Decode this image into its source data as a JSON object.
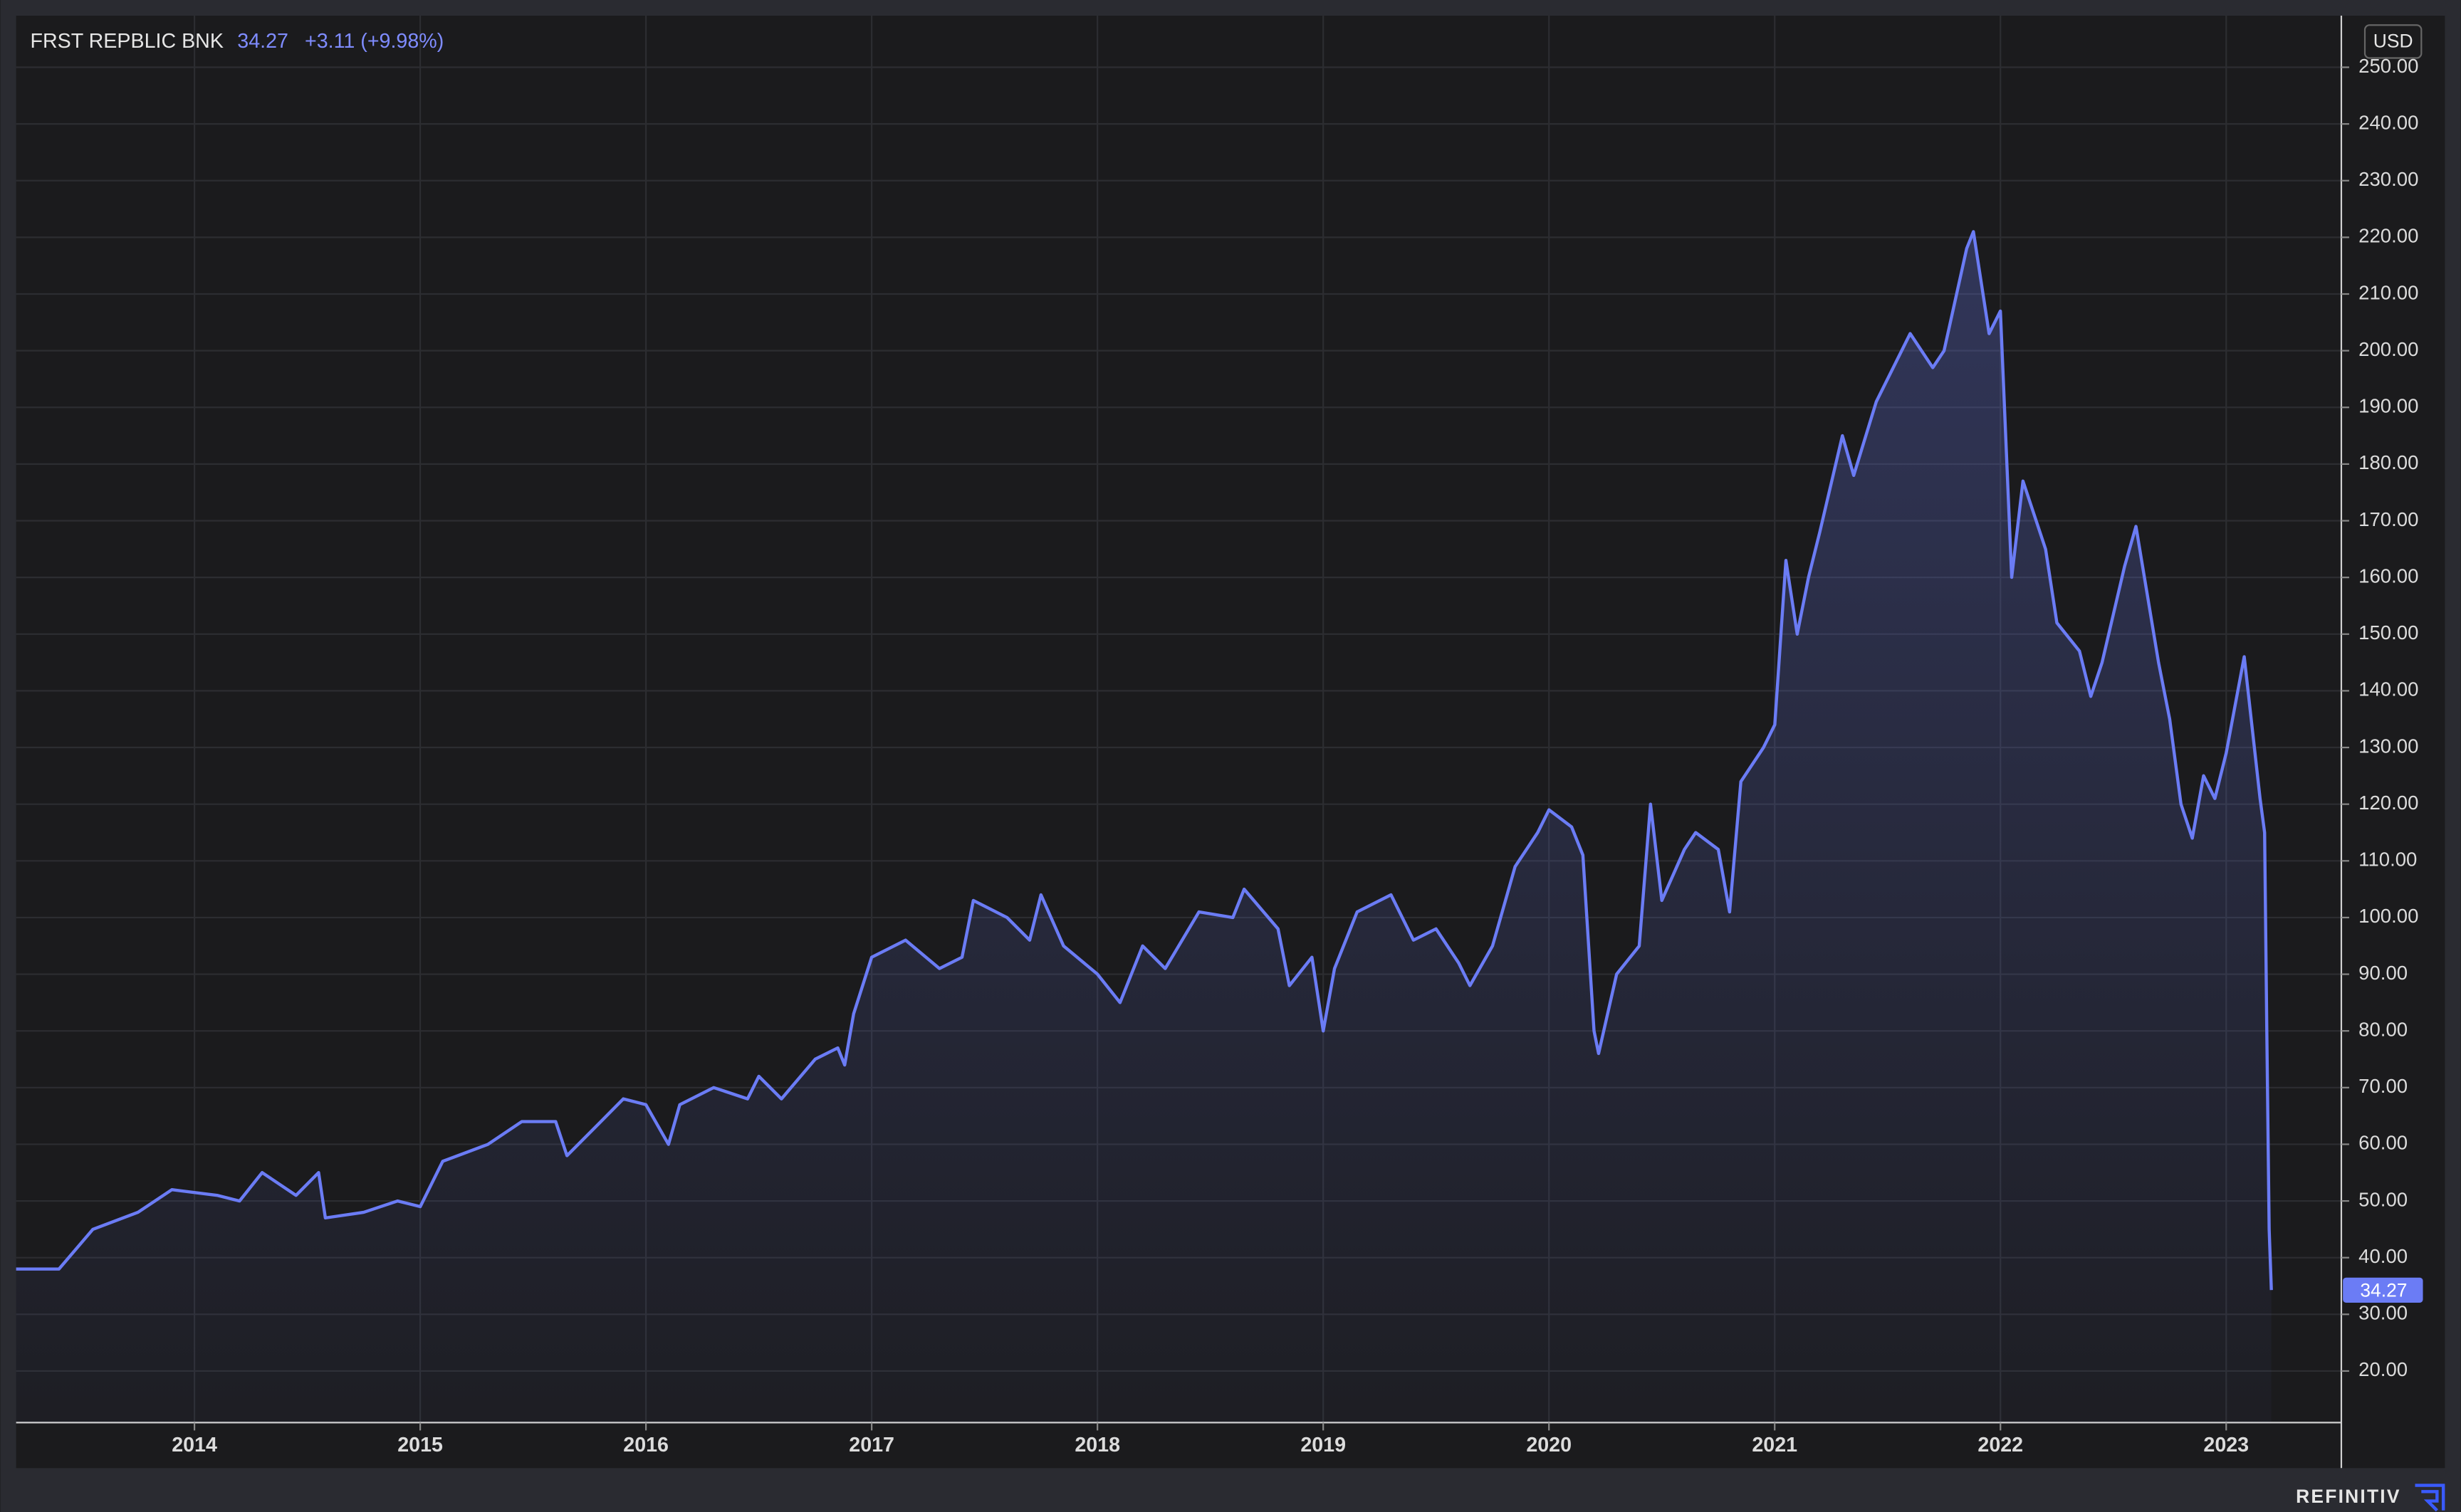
{
  "header": {
    "name": "FRST REPBLIC BNK",
    "price": "34.27",
    "change": "+3.11 (+9.98%)"
  },
  "currency": "USD",
  "brand": "REFINITIV",
  "chart_data": {
    "type": "line",
    "color": "#6b7cf5",
    "grid": true,
    "xlim": [
      2013.21,
      2023.51
    ],
    "xticks": [
      2014,
      2015,
      2016,
      2017,
      2018,
      2019,
      2020,
      2021,
      2022,
      2023
    ],
    "ylim": [
      10.9,
      259.1
    ],
    "yticks": [
      {
        "value": 20,
        "label": "20.00"
      },
      {
        "value": 30,
        "label": "30.00"
      },
      {
        "value": 40,
        "label": "40.00"
      },
      {
        "value": 50,
        "label": "50.00"
      },
      {
        "value": 60,
        "label": "60.00"
      },
      {
        "value": 70,
        "label": "70.00"
      },
      {
        "value": 80,
        "label": "80.00"
      },
      {
        "value": 90,
        "label": "90.00"
      },
      {
        "value": 100,
        "label": "100.00"
      },
      {
        "value": 110,
        "label": "110.00"
      },
      {
        "value": 120,
        "label": "120.00"
      },
      {
        "value": 130,
        "label": "130.00"
      },
      {
        "value": 140,
        "label": "140.00"
      },
      {
        "value": 150,
        "label": "150.00"
      },
      {
        "value": 160,
        "label": "160.00"
      },
      {
        "value": 170,
        "label": "170.00"
      },
      {
        "value": 180,
        "label": "180.00"
      },
      {
        "value": 190,
        "label": "190.00"
      },
      {
        "value": 200,
        "label": "200.00"
      },
      {
        "value": 210,
        "label": "210.00"
      },
      {
        "value": 220,
        "label": "220.00"
      },
      {
        "value": 230,
        "label": "230.00"
      },
      {
        "value": 240,
        "label": "240.00"
      },
      {
        "value": 250,
        "label": "250.00"
      }
    ],
    "x": [
      2013.21,
      2013.4,
      2013.55,
      2013.75,
      2013.9,
      2014.1,
      2014.2,
      2014.3,
      2014.45,
      2014.55,
      2014.58,
      2014.75,
      2014.9,
      2015.0,
      2015.1,
      2015.3,
      2015.45,
      2015.6,
      2015.65,
      2015.8,
      2015.9,
      2016.0,
      2016.1,
      2016.15,
      2016.3,
      2016.45,
      2016.5,
      2016.6,
      2016.75,
      2016.85,
      2016.88,
      2016.92,
      2017.0,
      2017.15,
      2017.3,
      2017.4,
      2017.45,
      2017.6,
      2017.7,
      2017.75,
      2017.85,
      2018.0,
      2018.1,
      2018.2,
      2018.3,
      2018.45,
      2018.6,
      2018.65,
      2018.8,
      2018.85,
      2018.95,
      2019.0,
      2019.05,
      2019.15,
      2019.3,
      2019.4,
      2019.5,
      2019.6,
      2019.65,
      2019.75,
      2019.85,
      2019.95,
      2020.0,
      2020.1,
      2020.15,
      2020.2,
      2020.22,
      2020.3,
      2020.4,
      2020.45,
      2020.5,
      2020.6,
      2020.65,
      2020.75,
      2020.8,
      2020.85,
      2020.95,
      2021.0,
      2021.05,
      2021.1,
      2021.15,
      2021.2,
      2021.3,
      2021.35,
      2021.45,
      2021.6,
      2021.7,
      2021.75,
      2021.85,
      2021.88,
      2021.95,
      2022.0,
      2022.05,
      2022.1,
      2022.2,
      2022.25,
      2022.35,
      2022.4,
      2022.45,
      2022.55,
      2022.6,
      2022.7,
      2022.75,
      2022.8,
      2022.85,
      2022.9,
      2022.95,
      2023.0,
      2023.08,
      2023.15,
      2023.17,
      2023.18,
      2023.19,
      2023.2
    ],
    "series": [
      {
        "name": "FRST REPBLIC BNK",
        "color": "#6b7cf5",
        "values": [
          38,
          38,
          45,
          48,
          52,
          51,
          50,
          55,
          51,
          55,
          47,
          48,
          50,
          49,
          57,
          60,
          64,
          64,
          58,
          64,
          68,
          67,
          60,
          67,
          70,
          68,
          72,
          68,
          75,
          77,
          74,
          83,
          93,
          96,
          91,
          93,
          103,
          100,
          96,
          104,
          95,
          90,
          85,
          95,
          91,
          101,
          100,
          105,
          98,
          88,
          93,
          80,
          91,
          101,
          104,
          96,
          98,
          92,
          88,
          95,
          109,
          115,
          119,
          116,
          111,
          80,
          76,
          90,
          95,
          120,
          103,
          112,
          115,
          112,
          101,
          124,
          130,
          134,
          163,
          150,
          160,
          168,
          185,
          178,
          191,
          203,
          197,
          200,
          218,
          221,
          203,
          207,
          160,
          177,
          165,
          152,
          147,
          139,
          145,
          162,
          169,
          145,
          135,
          120,
          114,
          125,
          121,
          129,
          146,
          121,
          115,
          80,
          45,
          34.27
        ]
      }
    ]
  }
}
